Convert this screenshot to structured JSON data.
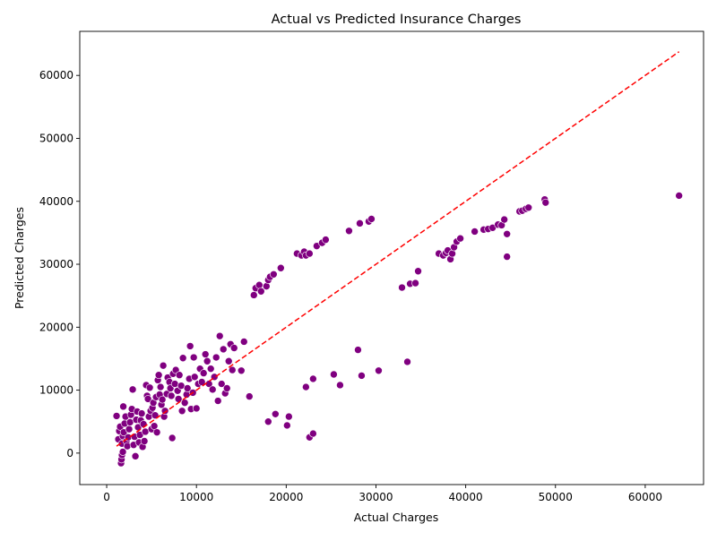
{
  "chart_data": {
    "type": "scatter",
    "title": "Actual vs Predicted Insurance Charges",
    "xlabel": "Actual Charges",
    "ylabel": "Predicted Charges",
    "xlim": [
      -3000,
      66500
    ],
    "ylim": [
      -5000,
      67000
    ],
    "xticks": [
      0,
      10000,
      20000,
      30000,
      40000,
      50000,
      60000
    ],
    "yticks": [
      0,
      10000,
      20000,
      30000,
      40000,
      50000,
      60000
    ],
    "grid": false,
    "legend": "none",
    "point_color": "#800080",
    "reference_line": {
      "style": "dashed",
      "color": "#ff0000",
      "from": [
        1100,
        1100
      ],
      "to": [
        63770,
        63770
      ]
    },
    "points": [
      [
        1100,
        5900
      ],
      [
        1300,
        2200
      ],
      [
        1400,
        3500
      ],
      [
        1500,
        4200
      ],
      [
        1600,
        -1600
      ],
      [
        1650,
        -1000
      ],
      [
        1700,
        -300
      ],
      [
        1800,
        200
      ],
      [
        1700,
        1500
      ],
      [
        1800,
        2700
      ],
      [
        1900,
        3300
      ],
      [
        1850,
        7400
      ],
      [
        2000,
        4700
      ],
      [
        2100,
        5800
      ],
      [
        2200,
        1900
      ],
      [
        2300,
        1100
      ],
      [
        2400,
        2500
      ],
      [
        2500,
        3800
      ],
      [
        2600,
        4900
      ],
      [
        2700,
        6100
      ],
      [
        2800,
        7000
      ],
      [
        2900,
        10100
      ],
      [
        3000,
        1300
      ],
      [
        3100,
        2600
      ],
      [
        3200,
        -500
      ],
      [
        3300,
        5300
      ],
      [
        3400,
        6600
      ],
      [
        3500,
        4100
      ],
      [
        3600,
        1700
      ],
      [
        3700,
        2900
      ],
      [
        3800,
        5200
      ],
      [
        3900,
        6300
      ],
      [
        4000,
        1000
      ],
      [
        4100,
        4600
      ],
      [
        4200,
        1900
      ],
      [
        4300,
        3400
      ],
      [
        4400,
        10800
      ],
      [
        4500,
        9100
      ],
      [
        4600,
        8600
      ],
      [
        4700,
        5800
      ],
      [
        4800,
        10400
      ],
      [
        4900,
        6700
      ],
      [
        5000,
        3800
      ],
      [
        5100,
        7200
      ],
      [
        5200,
        8000
      ],
      [
        5300,
        4300
      ],
      [
        5400,
        6000
      ],
      [
        5500,
        8900
      ],
      [
        5600,
        3300
      ],
      [
        5700,
        11600
      ],
      [
        5800,
        12400
      ],
      [
        5900,
        9300
      ],
      [
        6000,
        10500
      ],
      [
        6100,
        7700
      ],
      [
        6200,
        8500
      ],
      [
        6300,
        13900
      ],
      [
        6400,
        5800
      ],
      [
        6500,
        6700
      ],
      [
        6700,
        9400
      ],
      [
        6800,
        12000
      ],
      [
        7000,
        11300
      ],
      [
        7100,
        10300
      ],
      [
        7200,
        9100
      ],
      [
        7300,
        2400
      ],
      [
        7400,
        12600
      ],
      [
        7600,
        11000
      ],
      [
        7700,
        13200
      ],
      [
        7900,
        9900
      ],
      [
        8000,
        8600
      ],
      [
        8100,
        12400
      ],
      [
        8300,
        10700
      ],
      [
        8400,
        6700
      ],
      [
        8500,
        15100
      ],
      [
        8700,
        8000
      ],
      [
        8900,
        9300
      ],
      [
        9000,
        10300
      ],
      [
        9200,
        11800
      ],
      [
        9300,
        17000
      ],
      [
        9400,
        7000
      ],
      [
        9600,
        9600
      ],
      [
        9700,
        15200
      ],
      [
        9800,
        12100
      ],
      [
        10000,
        7100
      ],
      [
        10200,
        11000
      ],
      [
        10400,
        13400
      ],
      [
        10600,
        11300
      ],
      [
        10800,
        12700
      ],
      [
        11000,
        15700
      ],
      [
        11200,
        14600
      ],
      [
        11400,
        11000
      ],
      [
        11600,
        13400
      ],
      [
        11800,
        10100
      ],
      [
        12000,
        12100
      ],
      [
        12200,
        15200
      ],
      [
        12400,
        8300
      ],
      [
        12600,
        18600
      ],
      [
        12800,
        11000
      ],
      [
        13000,
        16500
      ],
      [
        13200,
        9500
      ],
      [
        13400,
        10300
      ],
      [
        13600,
        14600
      ],
      [
        13800,
        17300
      ],
      [
        14000,
        13200
      ],
      [
        14200,
        16700
      ],
      [
        15000,
        13100
      ],
      [
        15300,
        17700
      ],
      [
        15900,
        9000
      ],
      [
        16400,
        25100
      ],
      [
        16600,
        26200
      ],
      [
        17000,
        26700
      ],
      [
        17200,
        25700
      ],
      [
        17800,
        26500
      ],
      [
        18000,
        27500
      ],
      [
        18200,
        28000
      ],
      [
        18600,
        28400
      ],
      [
        19400,
        29400
      ],
      [
        18000,
        5000
      ],
      [
        18800,
        6200
      ],
      [
        20100,
        4400
      ],
      [
        20300,
        5800
      ],
      [
        21200,
        31700
      ],
      [
        21700,
        31400
      ],
      [
        22000,
        32000
      ],
      [
        22200,
        31400
      ],
      [
        22600,
        31700
      ],
      [
        22200,
        10500
      ],
      [
        22600,
        2500
      ],
      [
        23000,
        11800
      ],
      [
        23000,
        3100
      ],
      [
        23400,
        32900
      ],
      [
        24000,
        33400
      ],
      [
        24400,
        33900
      ],
      [
        25300,
        12500
      ],
      [
        26000,
        10800
      ],
      [
        27000,
        35300
      ],
      [
        28000,
        16400
      ],
      [
        28400,
        12300
      ],
      [
        28200,
        36500
      ],
      [
        29200,
        36800
      ],
      [
        29500,
        37200
      ],
      [
        30300,
        13100
      ],
      [
        32900,
        26300
      ],
      [
        33500,
        14500
      ],
      [
        33800,
        26900
      ],
      [
        34400,
        27000
      ],
      [
        34700,
        28900
      ],
      [
        37000,
        31700
      ],
      [
        37500,
        31400
      ],
      [
        37800,
        31800
      ],
      [
        38000,
        32200
      ],
      [
        38300,
        30800
      ],
      [
        38500,
        31700
      ],
      [
        38700,
        32700
      ],
      [
        39000,
        33600
      ],
      [
        39400,
        34100
      ],
      [
        41000,
        35200
      ],
      [
        42000,
        35500
      ],
      [
        42500,
        35600
      ],
      [
        43000,
        35800
      ],
      [
        43600,
        36300
      ],
      [
        44000,
        36200
      ],
      [
        44300,
        37100
      ],
      [
        44600,
        34800
      ],
      [
        44600,
        31200
      ],
      [
        46000,
        38400
      ],
      [
        46300,
        38500
      ],
      [
        46700,
        38800
      ],
      [
        47000,
        39000
      ],
      [
        48800,
        40300
      ],
      [
        48900,
        39800
      ],
      [
        63770,
        40900
      ]
    ]
  }
}
